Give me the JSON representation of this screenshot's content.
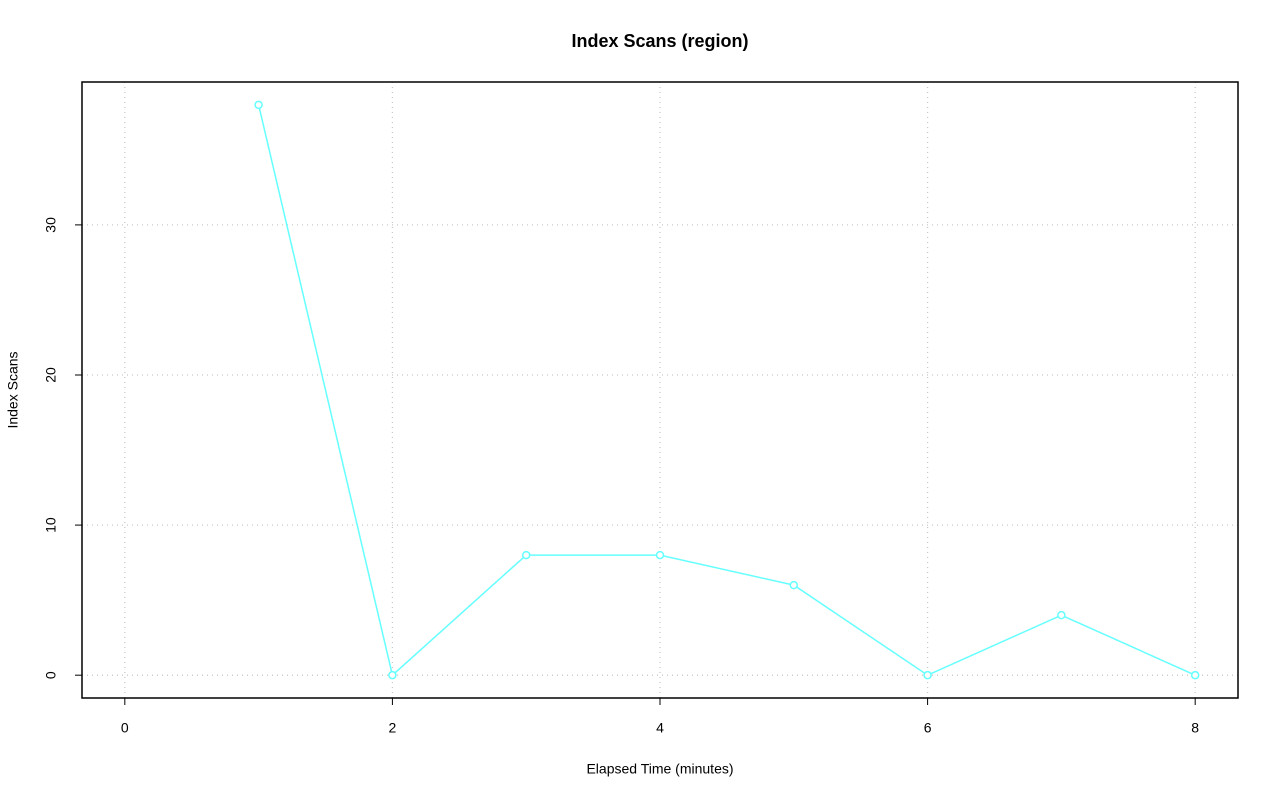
{
  "chart_data": {
    "type": "line",
    "title": "Index Scans (region)",
    "x_label": "Elapsed Time (minutes)",
    "y_label": "Index Scans",
    "x": [
      1,
      2,
      3,
      4,
      5,
      6,
      7,
      8
    ],
    "series": [
      {
        "name": "region",
        "color": "#66ffff",
        "values": [
          38,
          0,
          8,
          8,
          6,
          0,
          4,
          0
        ]
      }
    ],
    "xlim": [
      -0.32,
      8.32
    ],
    "ylim": [
      -1.52,
      39.52
    ],
    "xticks": [
      0,
      2,
      4,
      6,
      8
    ],
    "yticks": [
      0,
      10,
      20,
      30
    ],
    "grid": true
  }
}
